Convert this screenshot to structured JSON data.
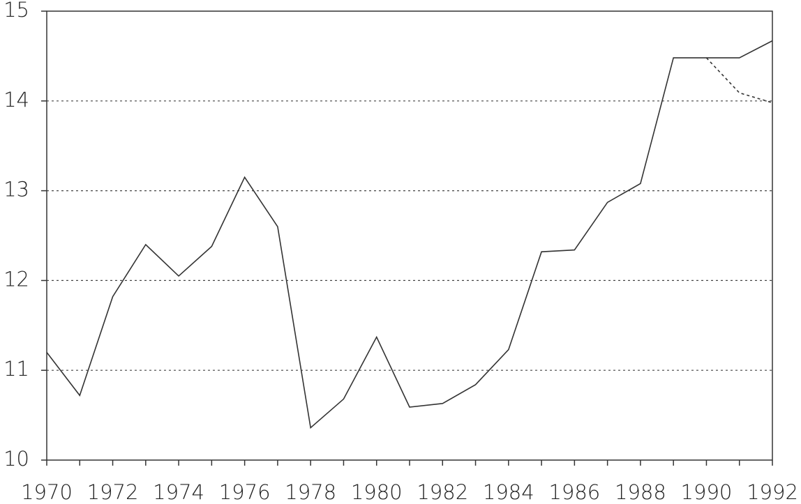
{
  "chart_data": {
    "type": "line",
    "x": [
      1970,
      1971,
      1972,
      1973,
      1974,
      1975,
      1976,
      1977,
      1978,
      1979,
      1980,
      1981,
      1982,
      1983,
      1984,
      1985,
      1986,
      1987,
      1988,
      1989,
      1990,
      1991,
      1992
    ],
    "series": [
      {
        "color": "#333333",
        "dash": "solid",
        "values": [
          11.2,
          10.72,
          11.82,
          12.4,
          12.05,
          12.38,
          13.15,
          12.6,
          10.36,
          10.68,
          11.37,
          10.59,
          10.63,
          10.84,
          11.23,
          12.32,
          12.34,
          12.87,
          13.08,
          14.48,
          14.48,
          14.48,
          14.67
        ]
      },
      {
        "color": "#333333",
        "dash": "dashed",
        "values": [
          null,
          null,
          null,
          null,
          null,
          null,
          null,
          null,
          null,
          null,
          null,
          null,
          null,
          null,
          null,
          null,
          null,
          null,
          null,
          null,
          14.48,
          14.09,
          13.98
        ]
      }
    ],
    "xlim": [
      1970,
      1992
    ],
    "xticks": [
      1970,
      1972,
      1974,
      1976,
      1978,
      1980,
      1982,
      1984,
      1986,
      1988,
      1990,
      1992
    ],
    "ylim": [
      10,
      15
    ],
    "yticks": [
      10,
      11,
      12,
      13,
      14,
      15
    ],
    "grid": true
  }
}
